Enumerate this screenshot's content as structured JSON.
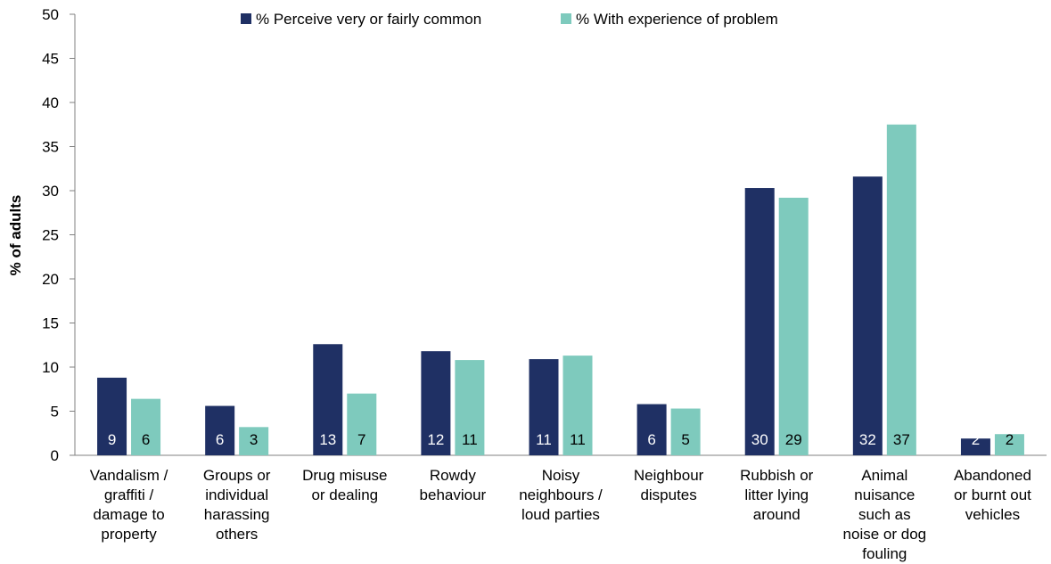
{
  "chart_data": {
    "type": "bar",
    "title": "",
    "xlabel": "",
    "ylabel": "% of adults",
    "ylim": [
      0,
      50
    ],
    "yticks": [
      0,
      5,
      10,
      15,
      20,
      25,
      30,
      35,
      40,
      45,
      50
    ],
    "grid": false,
    "legend_position": "top",
    "categories": [
      [
        "Vandalism /",
        "graffiti /",
        "damage to",
        "property"
      ],
      [
        "Groups or",
        "individual",
        "harassing",
        "others"
      ],
      [
        "Drug misuse",
        "or dealing"
      ],
      [
        "Rowdy",
        "behaviour"
      ],
      [
        "Noisy",
        "neighbours /",
        "loud parties"
      ],
      [
        "Neighbour",
        "disputes"
      ],
      [
        "Rubbish or",
        "litter lying",
        "around"
      ],
      [
        "Animal",
        "nuisance",
        "such as",
        "noise or dog",
        "fouling"
      ],
      [
        "Abandoned",
        "or burnt out",
        "vehicles"
      ]
    ],
    "series": [
      {
        "name": "% Perceive very or fairly common",
        "color": "#1f3064",
        "label_color": "#ffffff",
        "values": [
          8.8,
          5.6,
          12.6,
          11.8,
          10.9,
          5.8,
          30.3,
          31.6,
          1.9
        ],
        "labels": [
          "9",
          "6",
          "13",
          "12",
          "11",
          "6",
          "30",
          "32",
          "2"
        ]
      },
      {
        "name": "% With experience of problem",
        "color": "#7ecabd",
        "label_color": "#000000",
        "values": [
          6.4,
          3.2,
          7.0,
          10.8,
          11.3,
          5.3,
          29.2,
          37.5,
          2.4
        ],
        "labels": [
          "6",
          "3",
          "7",
          "11",
          "11",
          "5",
          "29",
          "37",
          "2"
        ]
      }
    ]
  }
}
